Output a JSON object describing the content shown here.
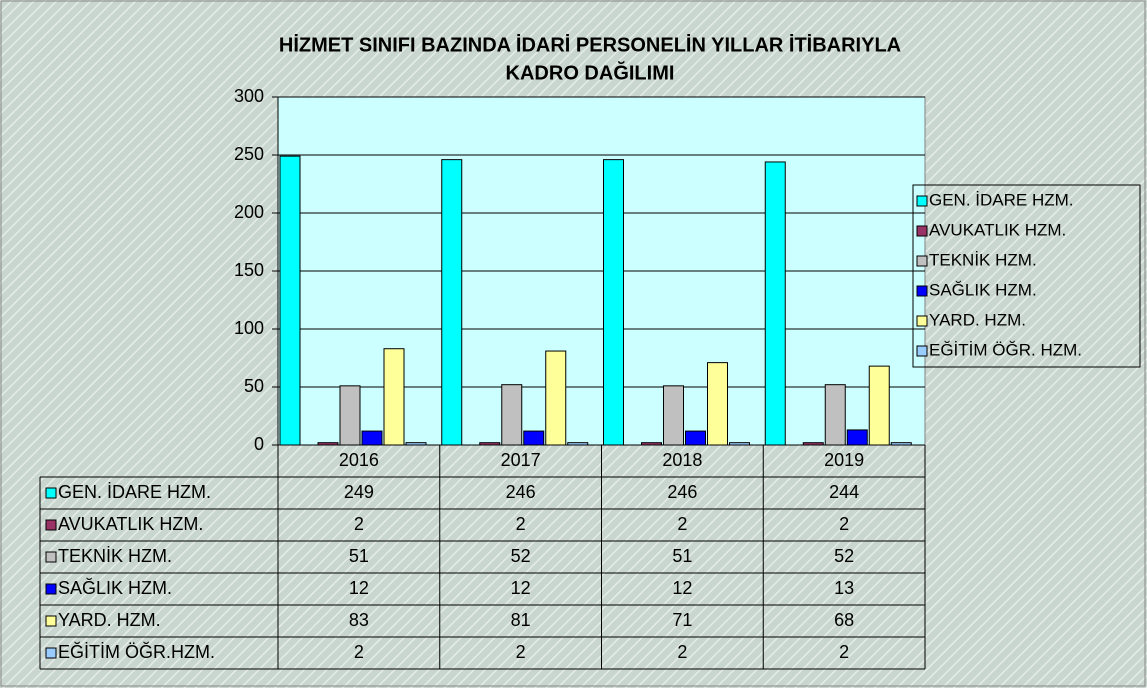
{
  "chart_data": {
    "type": "bar",
    "title": [
      "HİZMET SINIFI BAZINDA İDARİ PERSONELİN YILLAR İTİBARIYLA",
      "KADRO DAĞILIMI"
    ],
    "categories": [
      "2016",
      "2017",
      "2018",
      "2019"
    ],
    "series": [
      {
        "name": "GEN. İDARE HZM.",
        "color": "#00ffff",
        "values": [
          249,
          246,
          246,
          244
        ]
      },
      {
        "name": "AVUKATLIK HZM.",
        "color": "#993366",
        "values": [
          2,
          2,
          2,
          2
        ]
      },
      {
        "name": "TEKNİK HZM.",
        "color": "#c0c0c0",
        "values": [
          51,
          52,
          51,
          52
        ]
      },
      {
        "name": "SAĞLIK HZM.",
        "color": "#0000ff",
        "values": [
          12,
          12,
          12,
          13
        ]
      },
      {
        "name": "YARD. HZM.",
        "color": "#ffff99",
        "values": [
          83,
          81,
          71,
          68
        ]
      },
      {
        "name": "EĞİTİM ÖĞR. HZM.",
        "color": "#99ccff",
        "values": [
          2,
          2,
          2,
          2
        ]
      }
    ],
    "data_table_row_labels": [
      "GEN. İDARE HZM.",
      "AVUKATLIK HZM.",
      "TEKNİK HZM.",
      "SAĞLIK HZM.",
      "YARD. HZM.",
      "EĞİTİM ÖĞR.HZM."
    ],
    "ylim": [
      0,
      300
    ],
    "yticks": [
      0,
      50,
      100,
      150,
      200,
      250,
      300
    ],
    "grid": true,
    "legend": "right"
  }
}
